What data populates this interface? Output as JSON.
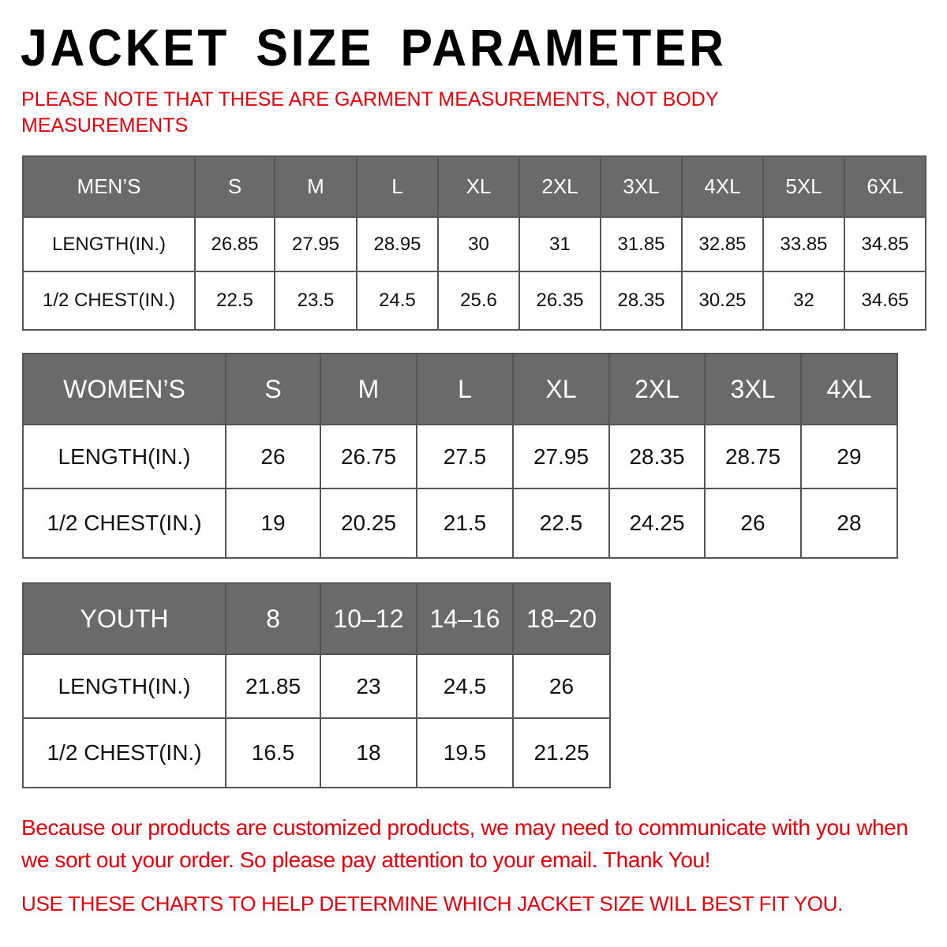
{
  "title": "JACKET SIZE PARAMETER",
  "note": "PLEASE NOTE THAT THESE ARE GARMENT MEASUREMENTS, NOT BODY MEASUREMENTS",
  "colors": {
    "header_bg": "#6a6a6a",
    "accent_red": "#e8000b"
  },
  "mens": {
    "header": [
      "MEN’S",
      "S",
      "M",
      "L",
      "XL",
      "2XL",
      "3XL",
      "4XL",
      "5XL",
      "6XL"
    ],
    "rows": [
      [
        "LENGTH(IN.)",
        "26.85",
        "27.95",
        "28.95",
        "30",
        "31",
        "31.85",
        "32.85",
        "33.85",
        "34.85"
      ],
      [
        "1/2 CHEST(IN.)",
        "22.5",
        "23.5",
        "24.5",
        "25.6",
        "26.35",
        "28.35",
        "30.25",
        "32",
        "34.65"
      ]
    ]
  },
  "womens": {
    "header": [
      "WOMEN’S",
      "S",
      "M",
      "L",
      "XL",
      "2XL",
      "3XL",
      "4XL"
    ],
    "rows": [
      [
        "LENGTH(IN.)",
        "26",
        "26.75",
        "27.5",
        "27.95",
        "28.35",
        "28.75",
        "29"
      ],
      [
        "1/2 CHEST(IN.)",
        "19",
        "20.25",
        "21.5",
        "22.5",
        "24.25",
        "26",
        "28"
      ]
    ]
  },
  "youth": {
    "header": [
      "YOUTH",
      "8",
      "10–12",
      "14–16",
      "18–20"
    ],
    "rows": [
      [
        "LENGTH(IN.)",
        "21.85",
        "23",
        "24.5",
        "26"
      ],
      [
        "1/2 CHEST(IN.)",
        "16.5",
        "18",
        "19.5",
        "21.25"
      ]
    ]
  },
  "footer": {
    "message": "Because our products are customized products, we may need to communicate with you when we sort out your order. So please pay attention to your email. Thank You!",
    "advice": "USE THESE CHARTS TO HELP DETERMINE WHICH JACKET SIZE WILL BEST FIT YOU."
  }
}
